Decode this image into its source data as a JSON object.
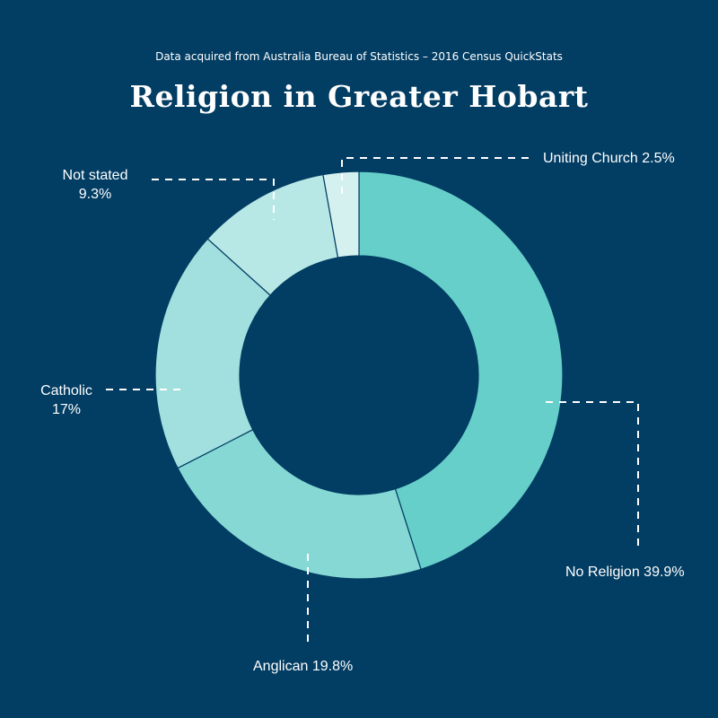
{
  "header": {
    "subtitle": "Data acquired from Australia Bureau of Statistics – 2016 Census QuickStats",
    "title": "Religion in Greater Hobart"
  },
  "colors": {
    "background": "#023d63",
    "slice_stroke": "#023d63",
    "leader_line": "#ffffff"
  },
  "chart_data": {
    "type": "pie",
    "title": "Religion in Greater Hobart",
    "subtitle": "Data acquired from Australia Bureau of Statistics – 2016 Census QuickStats",
    "donut": true,
    "slices": [
      {
        "label": "No Religion",
        "value": 39.9,
        "display": "39.9%",
        "color": "#67cfca"
      },
      {
        "label": "Anglican",
        "value": 19.8,
        "display": "19.8%",
        "color": "#86d8d5"
      },
      {
        "label": "Catholic",
        "value": 17,
        "display": "17%",
        "color": "#a1e0de"
      },
      {
        "label": "Not stated",
        "value": 9.3,
        "display": "9.3%",
        "color": "#b8e8e6"
      },
      {
        "label": "Uniting Church",
        "value": 2.5,
        "display": "2.5%",
        "color": "#d4f1ef"
      }
    ]
  }
}
